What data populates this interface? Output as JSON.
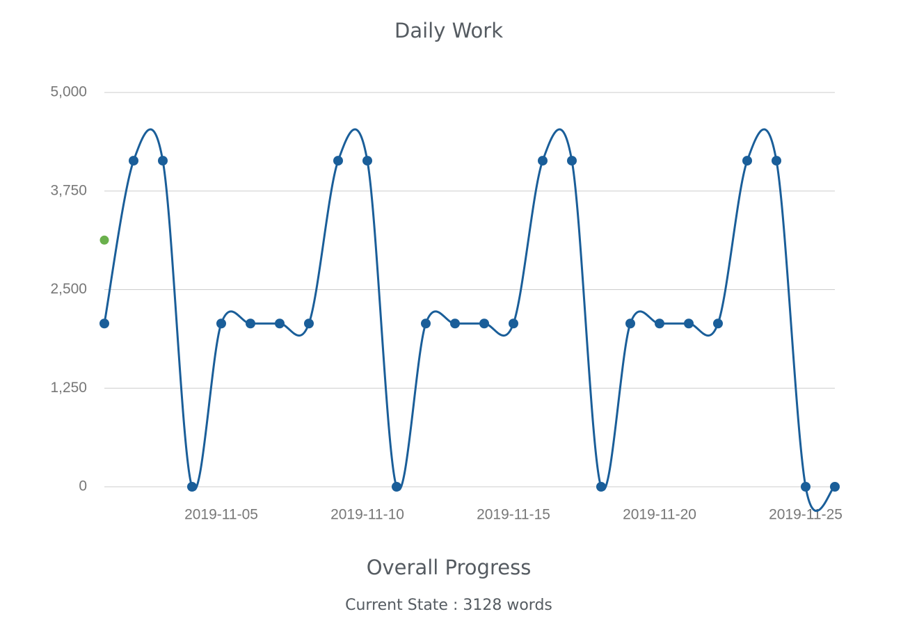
{
  "chart_data": {
    "type": "line",
    "title": "Daily Work",
    "x": [
      "2019-11-01",
      "2019-11-02",
      "2019-11-03",
      "2019-11-04",
      "2019-11-05",
      "2019-11-06",
      "2019-11-07",
      "2019-11-08",
      "2019-11-09",
      "2019-11-10",
      "2019-11-11",
      "2019-11-12",
      "2019-11-13",
      "2019-11-14",
      "2019-11-15",
      "2019-11-16",
      "2019-11-17",
      "2019-11-18",
      "2019-11-19",
      "2019-11-20",
      "2019-11-21",
      "2019-11-22",
      "2019-11-23",
      "2019-11-24",
      "2019-11-25",
      "2019-11-26"
    ],
    "series": [
      {
        "color": "#1a5e99",
        "line": true,
        "values": [
          2070,
          4135,
          4135,
          0,
          2070,
          2070,
          2070,
          2070,
          4135,
          4135,
          0,
          2070,
          2070,
          2070,
          2070,
          4135,
          4135,
          0,
          2070,
          2070,
          2070,
          2070,
          4135,
          4135,
          0,
          0
        ]
      },
      {
        "color": "#6ab04c",
        "line": false,
        "values": [
          3128,
          null,
          null,
          null,
          null,
          null,
          null,
          null,
          null,
          null,
          null,
          null,
          null,
          null,
          null,
          null,
          null,
          null,
          null,
          null,
          null,
          null,
          null,
          null,
          null,
          null
        ]
      }
    ],
    "ylim": [
      0,
      5000
    ],
    "yticks": [
      0,
      {
        "value": 1250,
        "label": "1,250"
      },
      {
        "value": 2500,
        "label": "2,500"
      },
      {
        "value": 3750,
        "label": "3,750"
      },
      {
        "value": 5000,
        "label": "5,000"
      }
    ],
    "xticks": [
      "2019-11-05",
      "2019-11-10",
      "2019-11-15",
      "2019-11-20",
      "2019-11-25"
    ],
    "grid": true
  },
  "progress": {
    "title": "Overall Progress",
    "text": "Current State : 3128 words"
  }
}
